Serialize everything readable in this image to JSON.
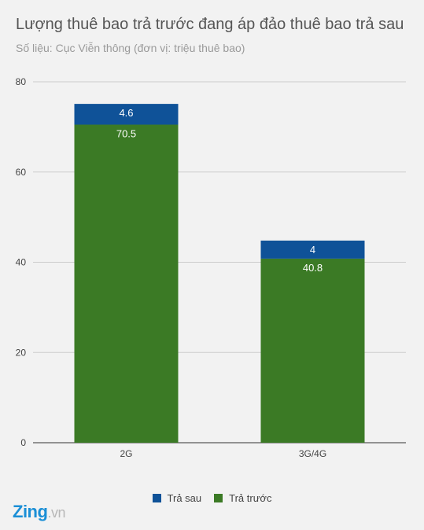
{
  "header": {
    "title": "Lượng thuê bao trả trước đang áp đảo thuê bao trả sau",
    "subtitle": "Số liệu: Cục Viễn thông (đơn vị: triệu thuê bao)"
  },
  "chart_data": {
    "type": "bar",
    "stacked": true,
    "categories": [
      "2G",
      "3G/4G"
    ],
    "series": [
      {
        "name": "Trả trước",
        "values": [
          70.5,
          40.8
        ],
        "color": "#3b7a25"
      },
      {
        "name": "Trả sau",
        "values": [
          4.6,
          4
        ],
        "color": "#0f5298"
      }
    ],
    "value_labels": [
      {
        "Trả trước": "70.5",
        "Trả sau": "4.6"
      },
      {
        "Trả trước": "40.8",
        "Trả sau": "4"
      }
    ],
    "title": "Lượng thuê bao trả trước đang áp đảo thuê bao trả sau",
    "subtitle": "Số liệu: Cục Viễn thông (đơn vị: triệu thuê bao)",
    "xlabel": "",
    "ylabel": "",
    "ylim": [
      0,
      80
    ],
    "yticks": [
      "0",
      "20",
      "40",
      "60",
      "80"
    ],
    "grid": true,
    "legend_position": "bottom",
    "legend_order": [
      "Trả sau",
      "Trả trước"
    ]
  },
  "legend": {
    "items": [
      {
        "label": "Trả sau",
        "color": "#0f5298"
      },
      {
        "label": "Trả trước",
        "color": "#3b7a25"
      }
    ]
  },
  "branding": {
    "logo_text": "Zing",
    "logo_domain": ".vn",
    "logo_color": "#1b8fd6",
    "logo_dot_color": "#e8312a"
  }
}
